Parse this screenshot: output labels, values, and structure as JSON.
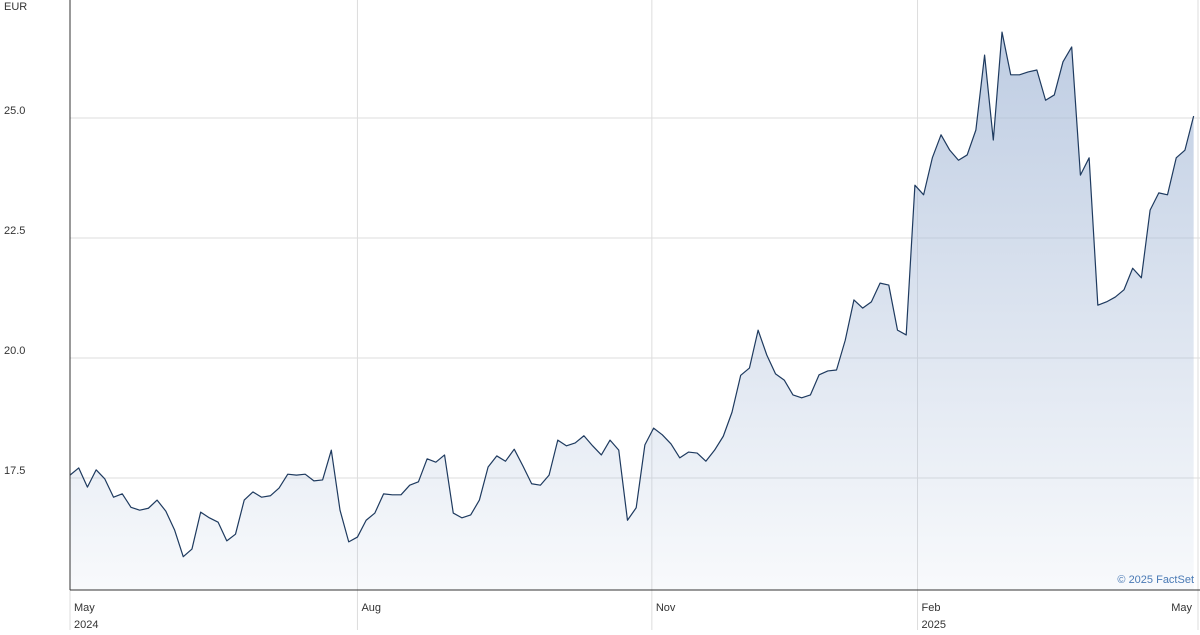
{
  "chart_data": {
    "type": "area",
    "y_axis_label": "EUR",
    "credit": "© 2025 FactSet",
    "color": "#1e3a5f",
    "fill_color": "#a9bcd9",
    "grid": true,
    "xlim": [
      0,
      129.5
    ],
    "xticks": [
      {
        "value": 0,
        "label": "May",
        "year": "2024"
      },
      {
        "value": 33,
        "label": "Aug"
      },
      {
        "value": 66.8,
        "label": "Nov"
      },
      {
        "value": 97.3,
        "label": "Feb",
        "year": "2025"
      },
      {
        "value": 129.5,
        "label": "May"
      }
    ],
    "ylim": [
      15.167,
      27.458
    ],
    "yticks": [
      17.5,
      {
        "value": 20,
        "label": "20.0"
      },
      22.5,
      {
        "value": 25,
        "label": "25.0"
      }
    ],
    "values": [
      17.56,
      17.71,
      17.31,
      17.67,
      17.48,
      17.1,
      17.17,
      16.89,
      16.83,
      16.87,
      17.04,
      16.81,
      16.42,
      15.86,
      16.02,
      16.79,
      16.67,
      16.58,
      16.19,
      16.33,
      17.04,
      17.21,
      17.1,
      17.13,
      17.29,
      17.58,
      17.56,
      17.58,
      17.44,
      17.46,
      18.08,
      16.83,
      16.17,
      16.27,
      16.62,
      16.77,
      17.17,
      17.15,
      17.15,
      17.35,
      17.42,
      17.9,
      17.83,
      17.98,
      16.77,
      16.67,
      16.73,
      17.04,
      17.73,
      17.96,
      17.85,
      18.1,
      17.75,
      17.38,
      17.35,
      17.56,
      18.29,
      18.17,
      18.23,
      18.38,
      18.17,
      17.98,
      18.29,
      18.08,
      16.62,
      16.88,
      18.19,
      18.54,
      18.4,
      18.21,
      17.92,
      18.04,
      18.02,
      17.85,
      18.08,
      18.37,
      18.87,
      19.64,
      19.79,
      20.58,
      20.06,
      19.67,
      19.54,
      19.23,
      19.17,
      19.23,
      19.65,
      19.73,
      19.75,
      20.37,
      21.21,
      21.04,
      21.17,
      21.56,
      21.52,
      20.58,
      20.48,
      23.6,
      23.4,
      24.17,
      24.65,
      24.33,
      24.12,
      24.23,
      24.75,
      26.31,
      24.54,
      26.79,
      25.9,
      25.9,
      25.96,
      26.0,
      25.37,
      25.48,
      26.17,
      26.48,
      23.81,
      24.17,
      21.1,
      21.17,
      21.27,
      21.42,
      21.87,
      21.67,
      23.08,
      23.44,
      23.4,
      24.17,
      24.33,
      25.04
    ]
  }
}
